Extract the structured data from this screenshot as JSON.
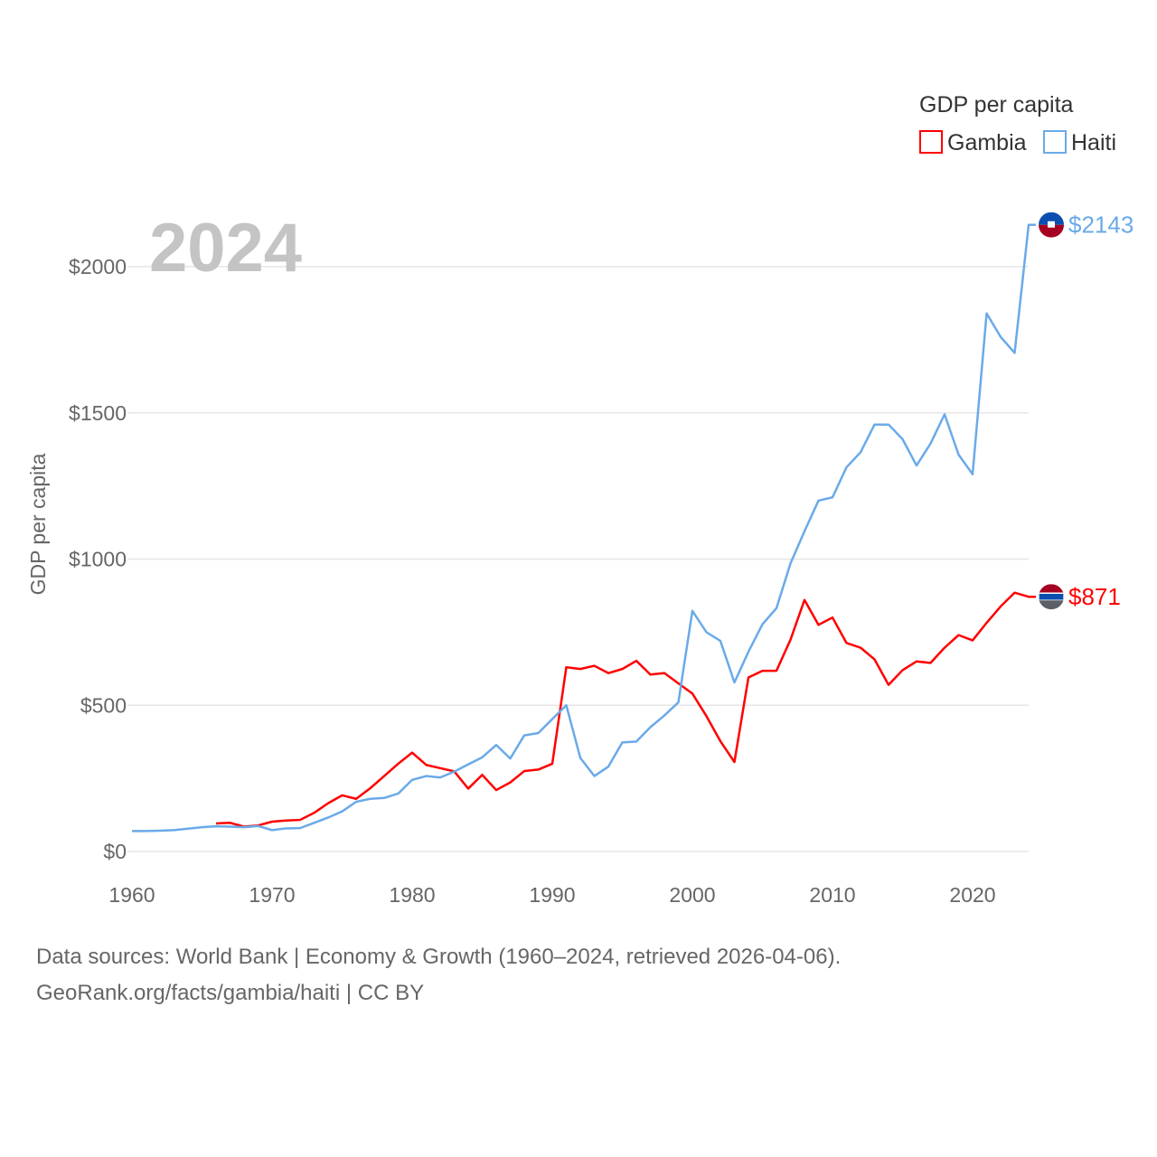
{
  "chart_data": {
    "type": "line",
    "title": "",
    "year_label": "2024",
    "xlabel": "",
    "ylabel": "GDP per capita",
    "xlim": [
      1960,
      2024
    ],
    "ylim": [
      0,
      2200
    ],
    "xticks": [
      1960,
      1970,
      1980,
      1990,
      2000,
      2010,
      2020
    ],
    "xtick_labels": [
      "1960",
      "1970",
      "1980",
      "1990",
      "2000",
      "2010",
      "2020"
    ],
    "yticks": [
      0,
      500,
      1000,
      1500,
      2000
    ],
    "ytick_labels": [
      "$0",
      "$500",
      "$1000",
      "$1500",
      "$2000"
    ],
    "grid": true,
    "legend": {
      "title": "GDP per capita",
      "placement": "top-right"
    },
    "series": [
      {
        "name": "Gambia",
        "color": "#ff0000",
        "end_label": "$871",
        "start_year": 1966,
        "values": [
          96,
          98,
          85,
          89,
          102,
          106,
          108,
          132,
          165,
          192,
          180,
          216,
          258,
          300,
          338,
          296,
          285,
          274,
          215,
          262,
          210,
          236,
          275,
          280,
          300,
          630,
          624,
          635,
          610,
          624,
          652,
          605,
          610,
          575,
          540,
          463,
          377,
          306,
          595,
          618,
          618,
          724,
          860,
          775,
          800,
          713,
          697,
          657,
          570,
          620,
          650,
          645,
          697,
          740,
          722,
          782,
          838,
          885,
          871
        ]
      },
      {
        "name": "Haiti",
        "color": "#6aaae8",
        "end_label": "$2143",
        "start_year": 1960,
        "values": [
          70,
          70,
          71,
          73,
          78,
          83,
          86,
          85,
          83,
          87,
          73,
          79,
          80,
          98,
          116,
          137,
          170,
          180,
          183,
          198,
          245,
          258,
          253,
          273,
          298,
          322,
          364,
          318,
          397,
          405,
          453,
          500,
          320,
          258,
          290,
          373,
          376,
          425,
          465,
          510,
          823,
          750,
          720,
          578,
          683,
          777,
          832,
          985,
          1095,
          1200,
          1211,
          1314,
          1365,
          1460,
          1460,
          1410,
          1320,
          1395,
          1495,
          1357,
          1290,
          1840,
          1760,
          1705,
          2143
        ]
      }
    ]
  },
  "footer": {
    "line1": "Data sources: World Bank | Economy & Growth (1960–2024, retrieved 2026-04-06).",
    "line2": "GeoRank.org/facts/gambia/haiti | CC BY"
  }
}
